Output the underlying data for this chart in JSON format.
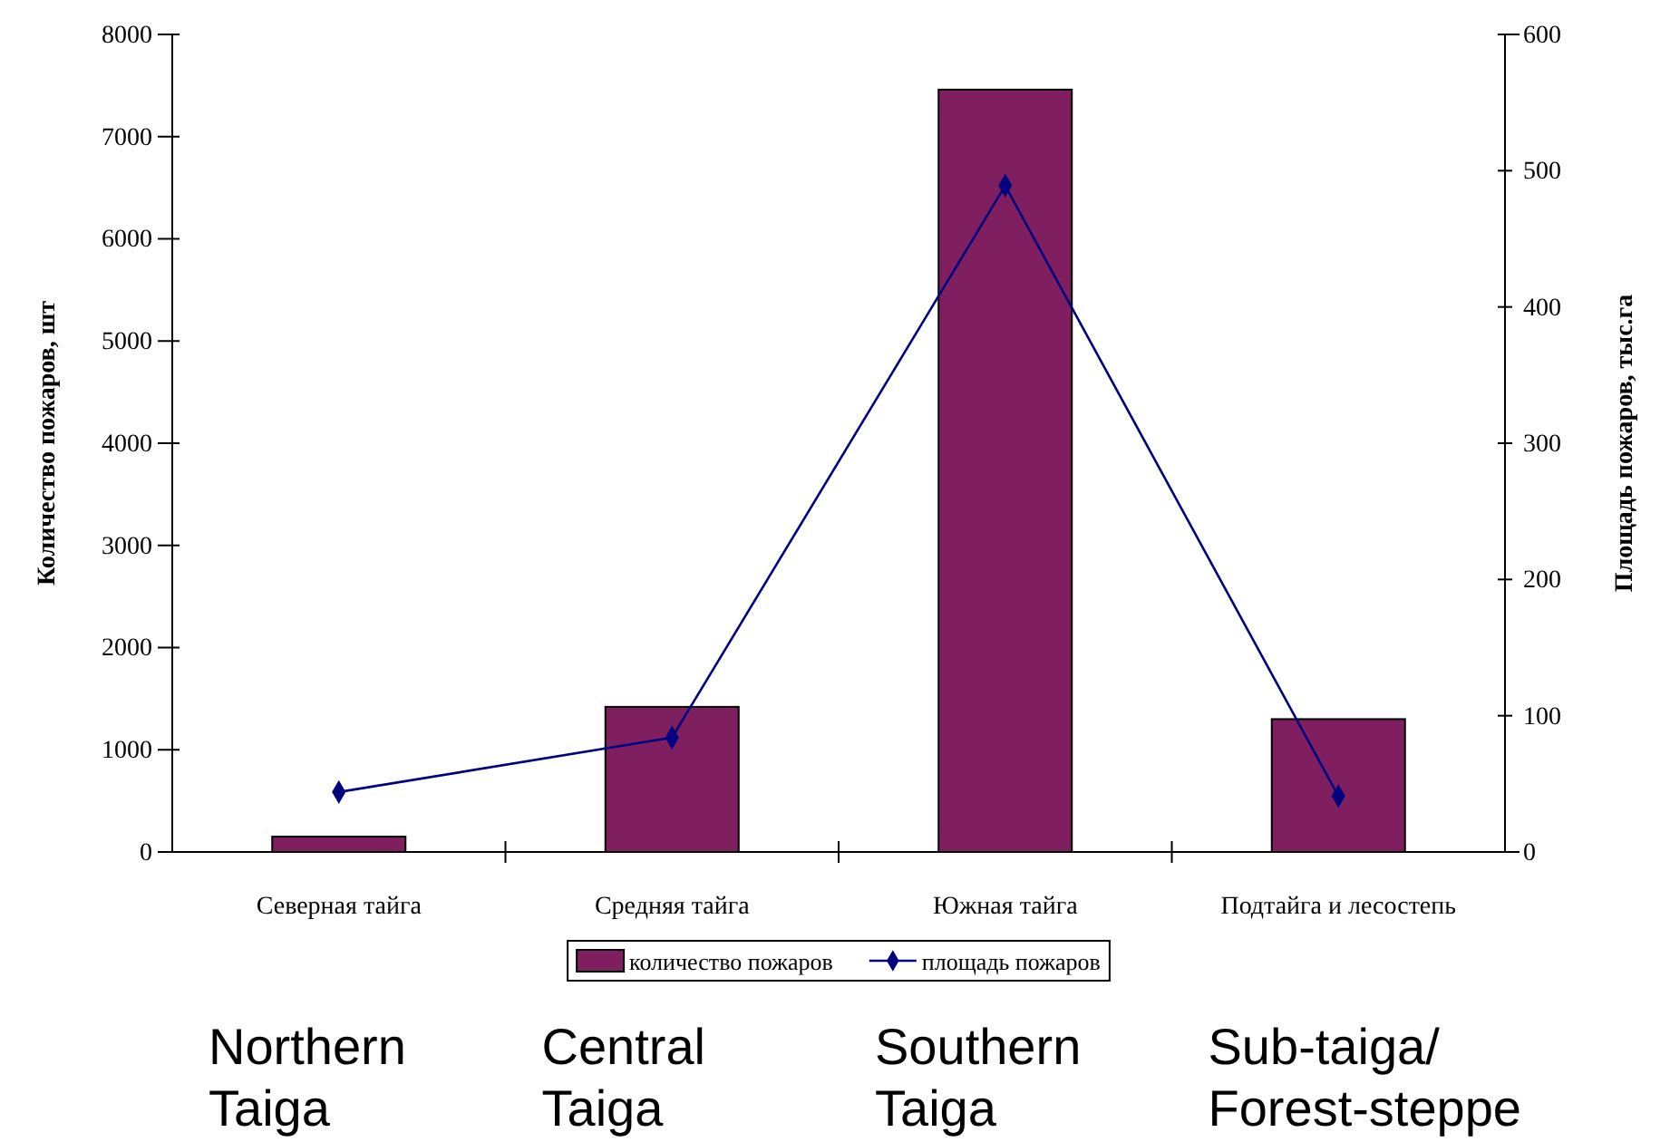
{
  "chart_data": {
    "type": "bar",
    "categories": [
      "Северная тайга",
      "Средняя тайга",
      "Южная тайга",
      "Подтайга и лесостепь"
    ],
    "ylabel": "Количество пожаров, шт",
    "y2label": "Площадь пожаров, тыс.га",
    "ylim": [
      0,
      8000
    ],
    "yticks": [
      0,
      1000,
      2000,
      3000,
      4000,
      5000,
      6000,
      7000,
      8000
    ],
    "y2lim": [
      0,
      600
    ],
    "y2ticks": [
      0,
      100,
      200,
      300,
      400,
      500,
      600
    ],
    "series": [
      {
        "name": "количество пожаров",
        "color": "#7f1f5f",
        "values": [
          150,
          1420,
          7460,
          1300
        ]
      },
      {
        "name": "площадь пожаров",
        "type": "line",
        "axis": "y2",
        "color": "#000080",
        "marker": "diamond",
        "values": [
          44,
          84,
          489,
          41
        ]
      }
    ],
    "legend": "bottom",
    "annotations": [
      "Northern\nTaiga",
      "Central\nTaiga",
      "Southern\nTaiga",
      "Sub-taiga/\nForest-steppe"
    ]
  }
}
